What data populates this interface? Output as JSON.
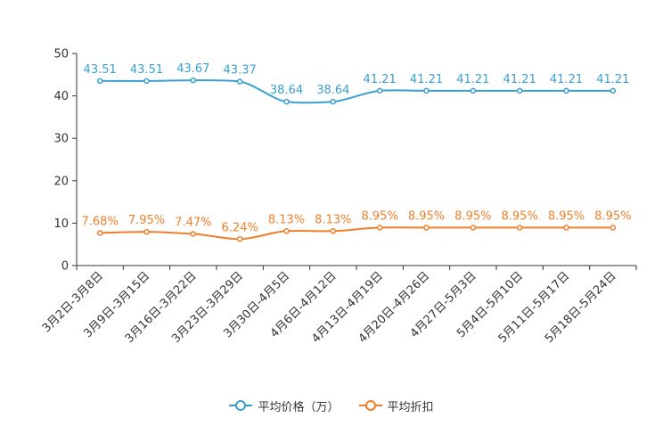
{
  "chart_data": {
    "type": "line",
    "categories": [
      "3月2日-3月8日",
      "3月9日-3月15日",
      "3月16日-3月22日",
      "3月23日-3月29日",
      "3月30日-4月5日",
      "4月6日-4月12日",
      "4月13日-4月19日",
      "4月20日-4月26日",
      "4月27日-5月3日",
      "5月4日-5月10日",
      "5月11日-5月17日",
      "5月18日-5月24日"
    ],
    "ylim": [
      0,
      50
    ],
    "yticks": [
      0,
      10,
      20,
      30,
      40,
      50
    ],
    "series": [
      {
        "name": "平均价格（万）",
        "color": "#3a9fd0",
        "values": [
          43.51,
          43.51,
          43.67,
          43.37,
          38.64,
          38.64,
          41.21,
          41.21,
          41.21,
          41.21,
          41.21,
          41.21
        ],
        "labels": [
          "43.51",
          "43.51",
          "43.67",
          "43.37",
          "38.64",
          "38.64",
          "41.21",
          "41.21",
          "41.21",
          "41.21",
          "41.21",
          "41.21"
        ]
      },
      {
        "name": "平均折扣",
        "color": "#f07f2a",
        "values": [
          7.68,
          7.95,
          7.47,
          6.24,
          8.13,
          8.13,
          8.95,
          8.95,
          8.95,
          8.95,
          8.95,
          8.95
        ],
        "labels": [
          "7.68%",
          "7.95%",
          "7.47%",
          "6.24%",
          "8.13%",
          "8.13%",
          "8.95%",
          "8.95%",
          "8.95%",
          "8.95%",
          "8.95%",
          "8.95%"
        ]
      }
    ]
  }
}
